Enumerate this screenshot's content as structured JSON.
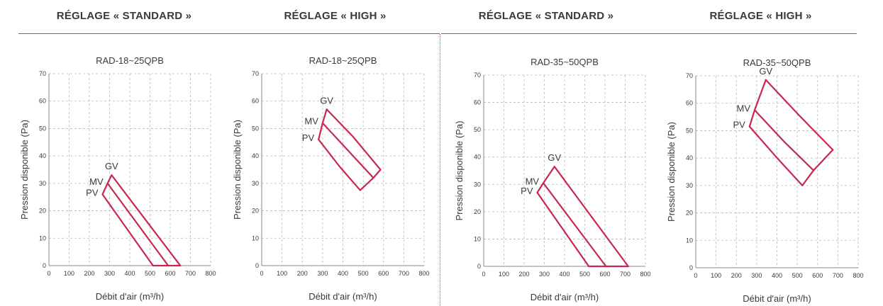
{
  "headers": [
    "RÉGLAGE « STANDARD »",
    "RÉGLAGE « HIGH »",
    "RÉGLAGE « STANDARD »",
    "RÉGLAGE « HIGH »"
  ],
  "colors": {
    "curve": "#c8284e",
    "grid": "#b8b8b8",
    "axis": "#8a8a8a",
    "text": "#3a3a3a",
    "divider": "#d34a5a"
  },
  "chart_data": [
    {
      "type": "line",
      "title": "RAD-18~25QPB",
      "xlabel": "Débit d'air (m³/h)",
      "ylabel": "Pression disponible (Pa)",
      "xlim": [
        0,
        800
      ],
      "ylim": [
        0,
        70
      ],
      "xticks": [
        0,
        100,
        200,
        300,
        400,
        500,
        600,
        700,
        800
      ],
      "yticks": [
        0,
        10,
        20,
        30,
        40,
        50,
        60,
        70
      ],
      "grid": true,
      "series": [
        {
          "name": "GV",
          "x": [
            310,
            650
          ],
          "y": [
            33,
            0
          ]
        },
        {
          "name": "MV",
          "x": [
            290,
            590
          ],
          "y": [
            30,
            0
          ]
        },
        {
          "name": "PV",
          "x": [
            265,
            515
          ],
          "y": [
            26,
            0
          ]
        }
      ]
    },
    {
      "type": "line",
      "title": "RAD-18~25QPB",
      "xlabel": "Débit d'air (m³/h)",
      "ylabel": "Pression disponible (Pa)",
      "xlim": [
        0,
        800
      ],
      "ylim": [
        0,
        70
      ],
      "xticks": [
        0,
        100,
        200,
        300,
        400,
        500,
        600,
        700,
        800
      ],
      "yticks": [
        0,
        10,
        20,
        30,
        40,
        50,
        60,
        70
      ],
      "grid": true,
      "series": [
        {
          "name": "GV",
          "x": [
            320,
            450,
            585
          ],
          "y": [
            57,
            47,
            35
          ]
        },
        {
          "name": "MV",
          "x": [
            300,
            425,
            550
          ],
          "y": [
            52,
            42,
            32
          ]
        },
        {
          "name": "PV",
          "x": [
            280,
            385,
            485
          ],
          "y": [
            46,
            36,
            27.5
          ]
        }
      ]
    },
    {
      "type": "line",
      "title": "RAD-35~50QPB",
      "xlabel": "Débit d'air (m³/h)",
      "ylabel": "Pression disponible (Pa)",
      "xlim": [
        0,
        800
      ],
      "ylim": [
        0,
        70
      ],
      "xticks": [
        0,
        100,
        200,
        300,
        400,
        500,
        600,
        700,
        800
      ],
      "yticks": [
        0,
        10,
        20,
        30,
        40,
        50,
        60,
        70
      ],
      "grid": true,
      "series": [
        {
          "name": "GV",
          "x": [
            350,
            715
          ],
          "y": [
            36.5,
            0
          ]
        },
        {
          "name": "MV",
          "x": [
            295,
            605
          ],
          "y": [
            30.5,
            0
          ]
        },
        {
          "name": "PV",
          "x": [
            265,
            520
          ],
          "y": [
            27,
            0
          ]
        }
      ]
    },
    {
      "type": "line",
      "title": "RAD-35~50QPB",
      "xlabel": "Débit d'air (m³/h)",
      "ylabel": "Pression disponible (Pa)",
      "xlim": [
        0,
        800
      ],
      "ylim": [
        0,
        70
      ],
      "xticks": [
        0,
        100,
        200,
        300,
        400,
        500,
        600,
        700,
        800
      ],
      "yticks": [
        0,
        10,
        20,
        30,
        40,
        50,
        60,
        70
      ],
      "grid": true,
      "series": [
        {
          "name": "GV",
          "x": [
            345,
            510,
            675
          ],
          "y": [
            68.5,
            55.5,
            43
          ]
        },
        {
          "name": "MV",
          "x": [
            290,
            435,
            580
          ],
          "y": [
            57.5,
            46,
            35.5
          ]
        },
        {
          "name": "PV",
          "x": [
            265,
            395,
            525
          ],
          "y": [
            51.5,
            40.5,
            30
          ]
        }
      ]
    }
  ]
}
